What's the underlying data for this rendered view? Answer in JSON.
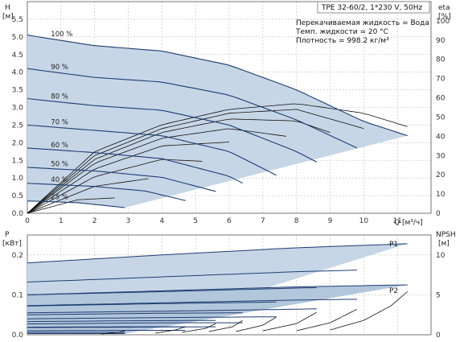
{
  "chart_data": [
    {
      "type": "line",
      "subtype": "pump-performance-head",
      "legend_box": {
        "model": "TPE 32-60/2, 1*230 V, 50Hz",
        "liquid": "Перекачиваемая жидкость = Вода",
        "temp": "Темп. жидкости = 20 °C",
        "density": "Плотность = 998.2 кг/м³"
      },
      "y_label": "H",
      "y_unit": "[м]",
      "y2_label": "eta",
      "y2_unit": "[%]",
      "x_label": "Q [м³/ч]",
      "xlim": [
        0,
        12
      ],
      "ylim": [
        0,
        6
      ],
      "y2lim": [
        0,
        110
      ],
      "x_ticks": [
        "0",
        "1",
        "2",
        "3",
        "4",
        "5",
        "6",
        "7",
        "8",
        "9",
        "10",
        "11"
      ],
      "y_ticks": [
        "0.0",
        "0.5",
        "1.0",
        "1.5",
        "2.0",
        "2.5",
        "3.0",
        "3.5",
        "4.0",
        "4.5",
        "5.0",
        "5.5"
      ],
      "y2_ticks": [
        "0",
        "10",
        "20",
        "30",
        "40",
        "50",
        "60",
        "70",
        "80",
        "90",
        "100"
      ],
      "grid": true,
      "operating_area_color": "#c7d6e6",
      "curve_color": "#1f3d72",
      "eta_color": "#111111",
      "series": [
        {
          "label": "100 %",
          "x": [
            0,
            2,
            4,
            6,
            8,
            10,
            11.3
          ],
          "y": [
            5.05,
            4.75,
            4.6,
            4.2,
            3.5,
            2.6,
            2.2
          ]
        },
        {
          "label": "90 %",
          "x": [
            0,
            2,
            4,
            6,
            8,
            9.8
          ],
          "y": [
            4.1,
            3.85,
            3.72,
            3.35,
            2.65,
            1.85
          ]
        },
        {
          "label": "80 %",
          "x": [
            0,
            2,
            4,
            6,
            8,
            8.6
          ],
          "y": [
            3.25,
            3.05,
            2.92,
            2.5,
            1.75,
            1.45
          ]
        },
        {
          "label": "70 %",
          "x": [
            0,
            2,
            4,
            6,
            7.4
          ],
          "y": [
            2.5,
            2.35,
            2.2,
            1.75,
            1.08
          ]
        },
        {
          "label": "60 %",
          "x": [
            0,
            2,
            4,
            6,
            6.4
          ],
          "y": [
            1.85,
            1.72,
            1.55,
            1.05,
            0.85
          ]
        },
        {
          "label": "50 %",
          "x": [
            0,
            2,
            4,
            5.6
          ],
          "y": [
            1.3,
            1.2,
            1.02,
            0.62
          ]
        },
        {
          "label": "40 %",
          "x": [
            0,
            2,
            3.5,
            4.7
          ],
          "y": [
            0.85,
            0.76,
            0.63,
            0.36
          ]
        },
        {
          "label": "25 %",
          "x": [
            0,
            1.5,
            2.9
          ],
          "y": [
            0.35,
            0.3,
            0.16
          ]
        }
      ],
      "eta_series": [
        {
          "x": [
            0,
            2,
            4,
            6,
            8,
            10,
            11.3
          ],
          "y": [
            0,
            32,
            46,
            54,
            57,
            52,
            45
          ]
        },
        {
          "x": [
            0,
            2,
            4,
            6,
            8,
            10
          ],
          "y": [
            0,
            30,
            44,
            52,
            54,
            44
          ]
        },
        {
          "x": [
            0,
            2,
            4,
            6,
            8,
            9
          ],
          "y": [
            0,
            28,
            42,
            49,
            48,
            42
          ]
        },
        {
          "x": [
            0,
            2,
            4,
            6,
            7.7
          ],
          "y": [
            0,
            26,
            39,
            44,
            40
          ]
        },
        {
          "x": [
            0,
            2,
            4,
            6
          ],
          "y": [
            0,
            23,
            35,
            37
          ]
        },
        {
          "x": [
            0,
            2,
            4,
            5.2
          ],
          "y": [
            0,
            19,
            28,
            27
          ]
        },
        {
          "x": [
            0,
            2,
            3.6
          ],
          "y": [
            0,
            14,
            18
          ]
        },
        {
          "x": [
            0,
            1.5,
            2.6
          ],
          "y": [
            0,
            7,
            8
          ]
        }
      ]
    },
    {
      "type": "line",
      "subtype": "pump-performance-power",
      "y_label": "P",
      "y_unit": "[кВт]",
      "y2_label": "NPSH",
      "y2_unit": "[м]",
      "xlim": [
        0,
        12
      ],
      "ylim": [
        0,
        0.25
      ],
      "y2lim": [
        0,
        12.5
      ],
      "y_ticks": [
        "0.0",
        "0.1",
        "0.2"
      ],
      "y2_ticks": [
        "0",
        "5",
        "10"
      ],
      "grid": true,
      "labels": {
        "p1": "P1",
        "p2": "P2"
      },
      "p1_series": [
        {
          "x": [
            0,
            4,
            8,
            11.3
          ],
          "y": [
            0.18,
            0.2,
            0.218,
            0.228
          ]
        },
        {
          "x": [
            0,
            4,
            8,
            9.8
          ],
          "y": [
            0.132,
            0.145,
            0.158,
            0.162
          ]
        },
        {
          "x": [
            0,
            4,
            8,
            8.6
          ],
          "y": [
            0.1,
            0.108,
            0.117,
            0.118
          ]
        },
        {
          "x": [
            0,
            4,
            7.4
          ],
          "y": [
            0.072,
            0.078,
            0.082
          ]
        },
        {
          "x": [
            0,
            4,
            6.4
          ],
          "y": [
            0.05,
            0.054,
            0.055
          ]
        },
        {
          "x": [
            0,
            3,
            5.6
          ],
          "y": [
            0.033,
            0.035,
            0.036
          ]
        },
        {
          "x": [
            0,
            3,
            4.7
          ],
          "y": [
            0.019,
            0.02,
            0.02
          ]
        },
        {
          "x": [
            0,
            2.9
          ],
          "y": [
            0.006,
            0.006
          ]
        }
      ],
      "p2_series": [
        {
          "x": [
            0,
            4,
            8,
            11.3
          ],
          "y": [
            0.1,
            0.11,
            0.12,
            0.125
          ]
        },
        {
          "x": [
            0,
            4,
            8,
            9.8
          ],
          "y": [
            0.073,
            0.08,
            0.087,
            0.089
          ]
        },
        {
          "x": [
            0,
            4,
            8,
            8.6
          ],
          "y": [
            0.055,
            0.059,
            0.064,
            0.065
          ]
        },
        {
          "x": [
            0,
            4,
            7.4
          ],
          "y": [
            0.04,
            0.043,
            0.045
          ]
        },
        {
          "x": [
            0,
            4,
            6.4
          ],
          "y": [
            0.027,
            0.03,
            0.03
          ]
        },
        {
          "x": [
            0,
            3,
            5.6
          ],
          "y": [
            0.018,
            0.019,
            0.02
          ]
        },
        {
          "x": [
            0,
            3,
            4.7
          ],
          "y": [
            0.01,
            0.011,
            0.011
          ]
        },
        {
          "x": [
            0,
            2.9
          ],
          "y": [
            0.003,
            0.003
          ]
        }
      ],
      "npsh_series": [
        {
          "x": [
            9,
            10,
            10.8,
            11.3
          ],
          "y": [
            0.6,
            1.8,
            3.6,
            5.4
          ]
        },
        {
          "x": [
            8,
            9,
            9.8
          ],
          "y": [
            0.5,
            1.5,
            3.2
          ]
        },
        {
          "x": [
            7,
            8,
            8.6
          ],
          "y": [
            0.5,
            1.4,
            2.8
          ]
        },
        {
          "x": [
            6.2,
            7,
            7.4
          ],
          "y": [
            0.4,
            1.2,
            2.2
          ]
        },
        {
          "x": [
            5.4,
            6.1,
            6.4
          ],
          "y": [
            0.4,
            1.0,
            1.8
          ]
        },
        {
          "x": [
            4.6,
            5.3,
            5.6
          ],
          "y": [
            0.3,
            0.8,
            1.4
          ]
        },
        {
          "x": [
            3.8,
            4.4,
            4.7
          ],
          "y": [
            0.2,
            0.6,
            1.0
          ]
        },
        {
          "x": [
            2.2,
            2.7,
            2.9
          ],
          "y": [
            0.1,
            0.3,
            0.5
          ]
        }
      ]
    }
  ]
}
